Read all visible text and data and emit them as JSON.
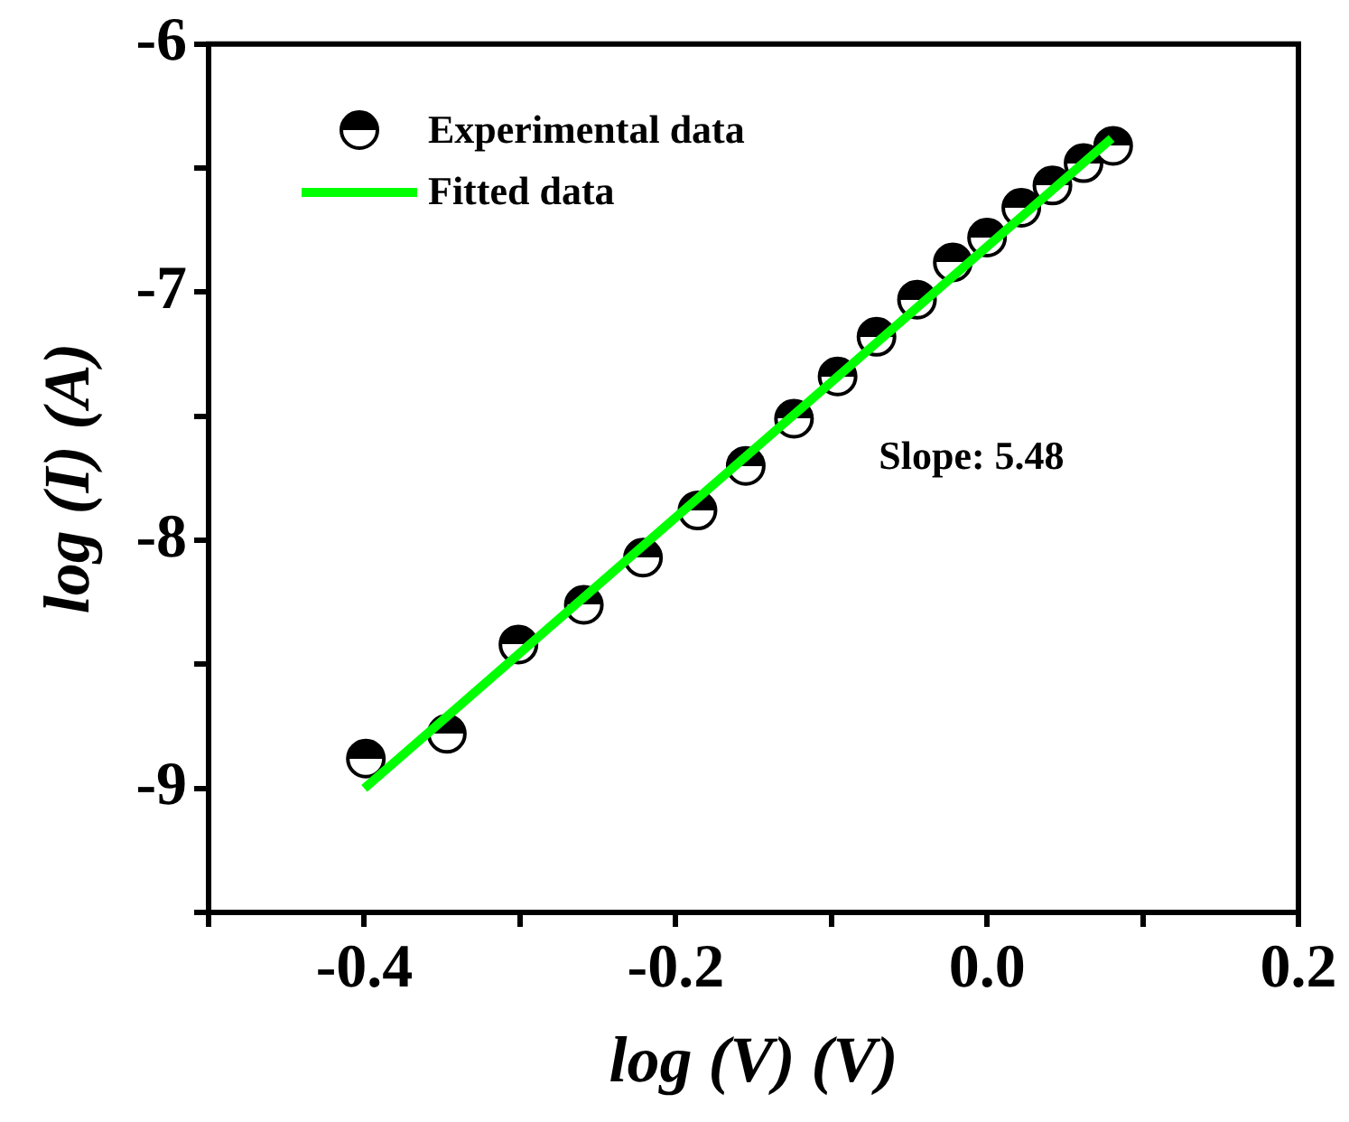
{
  "chart_data": {
    "type": "scatter",
    "xlabel": "log (V) (V)",
    "ylabel": "log (I) (A)",
    "xlim": [
      -0.5,
      0.2
    ],
    "ylim": [
      -9.5,
      -6
    ],
    "xticks": [
      {
        "value": -0.5,
        "label": null
      },
      -0.4,
      {
        "value": -0.3,
        "label": null
      },
      -0.2,
      {
        "value": -0.1,
        "label": null
      },
      {
        "value": 0,
        "label": "0.0"
      },
      {
        "value": 0.1,
        "label": null
      },
      0.2
    ],
    "yticks": [
      {
        "value": -9.5,
        "label": null
      },
      -9,
      {
        "value": -8.5,
        "label": null
      },
      -8,
      {
        "value": -7.5,
        "label": null
      },
      -7,
      {
        "value": -6.5,
        "label": null
      },
      -6
    ],
    "grid": false,
    "legend": "top left",
    "marker": "circle",
    "annotations": [
      "Slope: 5.48"
    ],
    "series": [
      {
        "name": "Experimental data",
        "color": "#000000",
        "x": [
          -0.399,
          -0.347,
          -0.301,
          -0.259,
          -0.221,
          -0.186,
          -0.155,
          -0.124,
          -0.096,
          -0.071,
          -0.045,
          -0.022,
          0.0,
          0.022,
          0.042,
          0.062,
          0.081
        ],
        "values": [
          -8.88,
          -8.78,
          -8.42,
          -8.26,
          -8.07,
          -7.88,
          -7.7,
          -7.51,
          -7.34,
          -7.18,
          -7.03,
          -6.88,
          -6.78,
          -6.66,
          -6.57,
          -6.48,
          -6.41
        ]
      },
      {
        "name": "Fitted data",
        "type": "line",
        "color": "#00ff00",
        "line_style": "solid",
        "marker": "none",
        "x": [
          -0.4,
          0.08
        ],
        "values": [
          -9.0,
          -6.38
        ]
      }
    ]
  }
}
